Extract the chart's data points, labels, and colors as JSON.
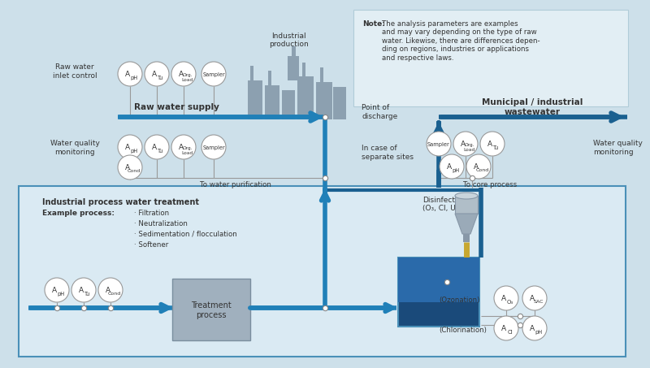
{
  "bg_color": "#cde0ea",
  "note_box_color": "#e2eef4",
  "inner_box_color": "#daeaf3",
  "inner_box_border": "#4a90b8",
  "arrow_blue": "#2080b8",
  "arrow_dark_blue": "#1a6090",
  "circle_bg": "#ffffff",
  "circle_border": "#999999",
  "text_dark": "#333333",
  "factory_color": "#8ca0b0",
  "tank_dark": "#1a4a7a",
  "tank_mid": "#2a6aaa",
  "tank_light": "#5090c8",
  "tube_color": "#c8a830",
  "treat_box_color": "#a0b0be",
  "treat_box_border": "#7a8e9e",
  "note_text_body": "The analysis parameters are examples\nand may vary depending on the type of raw\nwater. Likewise, there are differences depen-\nding on regions, industries or applications\nand respective laws.",
  "raw_water_label": "Raw water\ninlet control",
  "raw_water_supply": "Raw water supply",
  "wqm_left": "Water quality\nmonitoring",
  "to_water_purification": "To water purification",
  "to_core_process": "To core process",
  "in_case_separate": "In case of\nseparate sites",
  "point_discharge": "Point of\ndischarge",
  "municipal_wastewater": "Municipal / industrial\nwastewater",
  "wqm_right": "Water quality\nmonitoring",
  "industrial_production": "Industrial\nproduction",
  "industrial_process_title": "Industrial process water treatment",
  "example_process_label": "Example process:",
  "process_items": [
    "· Filtration",
    "· Neutralization",
    "· Sedimentation / flocculation",
    "· Softener"
  ],
  "disinfection_label": "Disinfection\n(O₃, Cl, UV, ...)",
  "ozonation_label": "(Ozonation)",
  "chlorination_label": "(Chlorination)",
  "treatment_process_label": "Treatment\nprocess"
}
